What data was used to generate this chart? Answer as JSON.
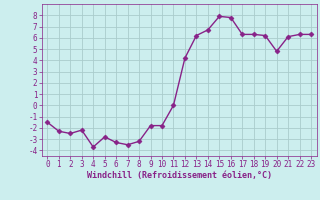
{
  "x": [
    0,
    1,
    2,
    3,
    4,
    5,
    6,
    7,
    8,
    9,
    10,
    11,
    12,
    13,
    14,
    15,
    16,
    17,
    18,
    19,
    20,
    21,
    22,
    23
  ],
  "y": [
    -1.5,
    -2.3,
    -2.5,
    -2.2,
    -3.7,
    -2.8,
    -3.3,
    -3.5,
    -3.2,
    -1.8,
    -1.8,
    0.0,
    4.2,
    6.2,
    6.7,
    7.9,
    7.8,
    6.3,
    6.3,
    6.2,
    4.8,
    6.1,
    6.3,
    6.3
  ],
  "line_color": "#882288",
  "marker": "D",
  "markersize": 2.5,
  "linewidth": 1.0,
  "bg_color": "#cceeee",
  "grid_color": "#aacccc",
  "xlabel": "Windchill (Refroidissement éolien,°C)",
  "xlabel_color": "#882288",
  "tick_color": "#882288",
  "ylim": [
    -4.5,
    9.0
  ],
  "xlim": [
    -0.5,
    23.5
  ],
  "yticks": [
    -4,
    -3,
    -2,
    -1,
    0,
    1,
    2,
    3,
    4,
    5,
    6,
    7,
    8
  ],
  "xticks": [
    0,
    1,
    2,
    3,
    4,
    5,
    6,
    7,
    8,
    9,
    10,
    11,
    12,
    13,
    14,
    15,
    16,
    17,
    18,
    19,
    20,
    21,
    22,
    23
  ],
  "tick_fontsize": 5.5,
  "xlabel_fontsize": 6.0
}
